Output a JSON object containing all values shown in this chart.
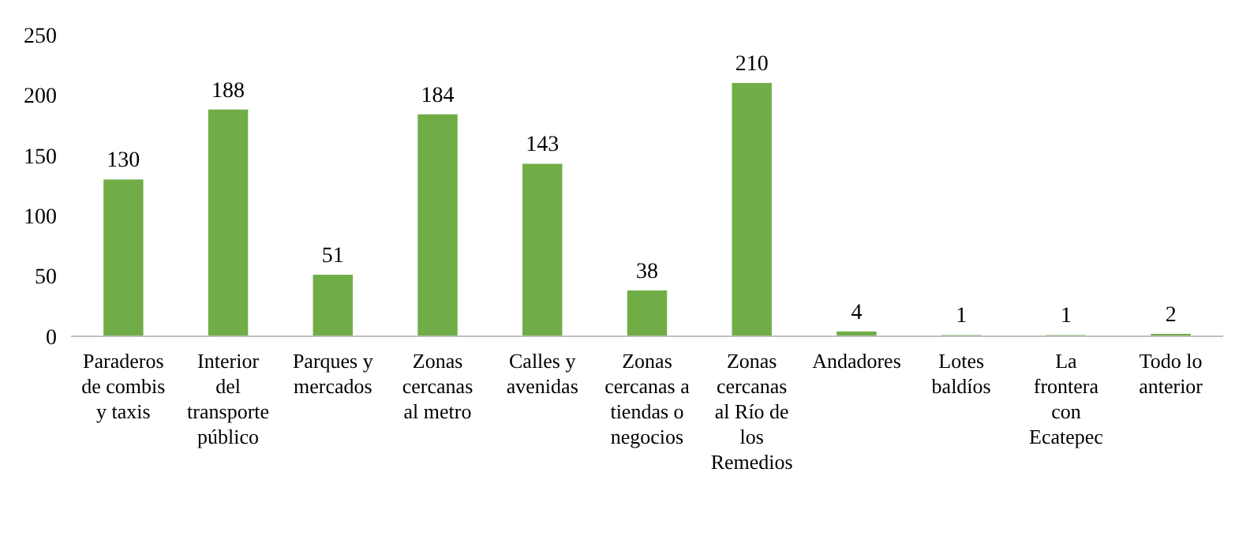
{
  "chart_data": {
    "type": "bar",
    "categories": [
      "Paraderos de combis y taxis",
      "Interior del transporte público",
      "Parques y mercados",
      "Zonas cercanas al metro",
      "Calles y avenidas",
      "Zonas cercanas a tiendas o negocios",
      "Zonas cercanas al Río de los Remedios",
      "Andadores",
      "Lotes baldíos",
      "La frontera con Ecatepec",
      "Todo lo anterior"
    ],
    "values": [
      130,
      188,
      51,
      184,
      143,
      38,
      210,
      4,
      1,
      1,
      2
    ],
    "color": "#70ad47",
    "ylim": [
      0,
      250
    ],
    "yticks": [
      0,
      50,
      100,
      150,
      200,
      250
    ],
    "grid": false,
    "data_labels": true
  }
}
